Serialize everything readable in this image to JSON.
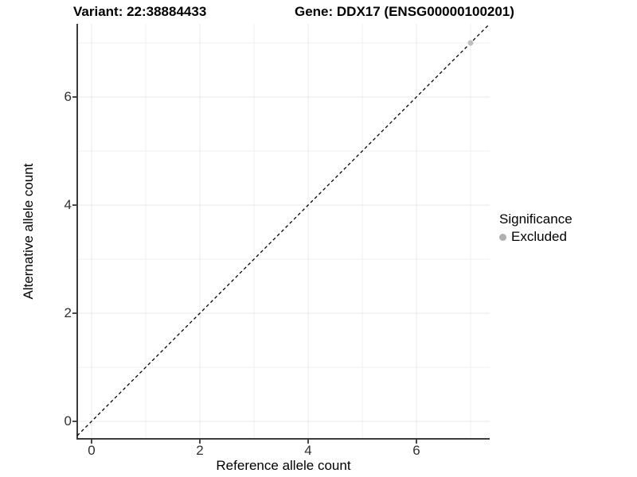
{
  "header": {
    "variant_title": "Variant: 22:38884433",
    "gene_title": "Gene: DDX17 (ENSG00000100201)"
  },
  "legend": {
    "title": "Significance",
    "position": "right",
    "items": [
      {
        "label": "Excluded",
        "color": "#b0b0b0"
      }
    ]
  },
  "colors": {
    "axis_line": "#3c3c3c",
    "tick_mark": "#333333",
    "grid_major": "#e8e8e8",
    "grid_minor": "#f2f2f2",
    "reference_line": "#000000",
    "point_excluded": "#bfbfbf",
    "panel_background": "#ffffff"
  },
  "chart_data": {
    "type": "scatter",
    "title": "Variant: 22:38884433    Gene: DDX17 (ENSG00000100201)",
    "xlabel": "Reference allele count",
    "ylabel": "Alternative allele count",
    "xlim": [
      -0.35,
      7.35
    ],
    "ylim": [
      -0.35,
      7.35
    ],
    "x_ticks": [
      0,
      2,
      4,
      6
    ],
    "y_ticks": [
      0,
      2,
      4,
      6
    ],
    "x_minor_ticks": [
      1,
      3,
      5,
      7
    ],
    "y_minor_ticks": [
      1,
      3,
      5,
      7
    ],
    "grid": true,
    "legend_position": "right",
    "reference_line": {
      "kind": "abline",
      "slope": 1,
      "intercept": 0,
      "style": "dashed",
      "color": "#000000"
    },
    "series": [
      {
        "name": "Excluded",
        "color": "#bfbfbf",
        "points": [
          {
            "x": 7,
            "y": 7
          }
        ]
      }
    ]
  }
}
